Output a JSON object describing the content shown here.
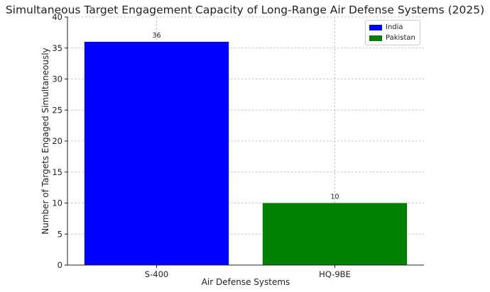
{
  "chart_data": {
    "type": "bar",
    "title": "Simultaneous Target Engagement Capacity of Long-Range Air Defense Systems (2025)",
    "xlabel": "Air Defense Systems",
    "ylabel": "Number of Targets Engaged Simultaneously",
    "categories": [
      "S-400",
      "HQ-9BE"
    ],
    "values": [
      36,
      10
    ],
    "bar_colors": [
      "#0000ff",
      "#008000"
    ],
    "yticks": [
      "0",
      "5",
      "10",
      "15",
      "20",
      "25",
      "30",
      "35",
      "40"
    ],
    "ylim": [
      0,
      40
    ],
    "grid": true,
    "legend": {
      "placement": "top-right",
      "entries": [
        {
          "label": "India",
          "color": "#0000ff"
        },
        {
          "label": "Pakistan",
          "color": "#008000"
        }
      ]
    }
  }
}
